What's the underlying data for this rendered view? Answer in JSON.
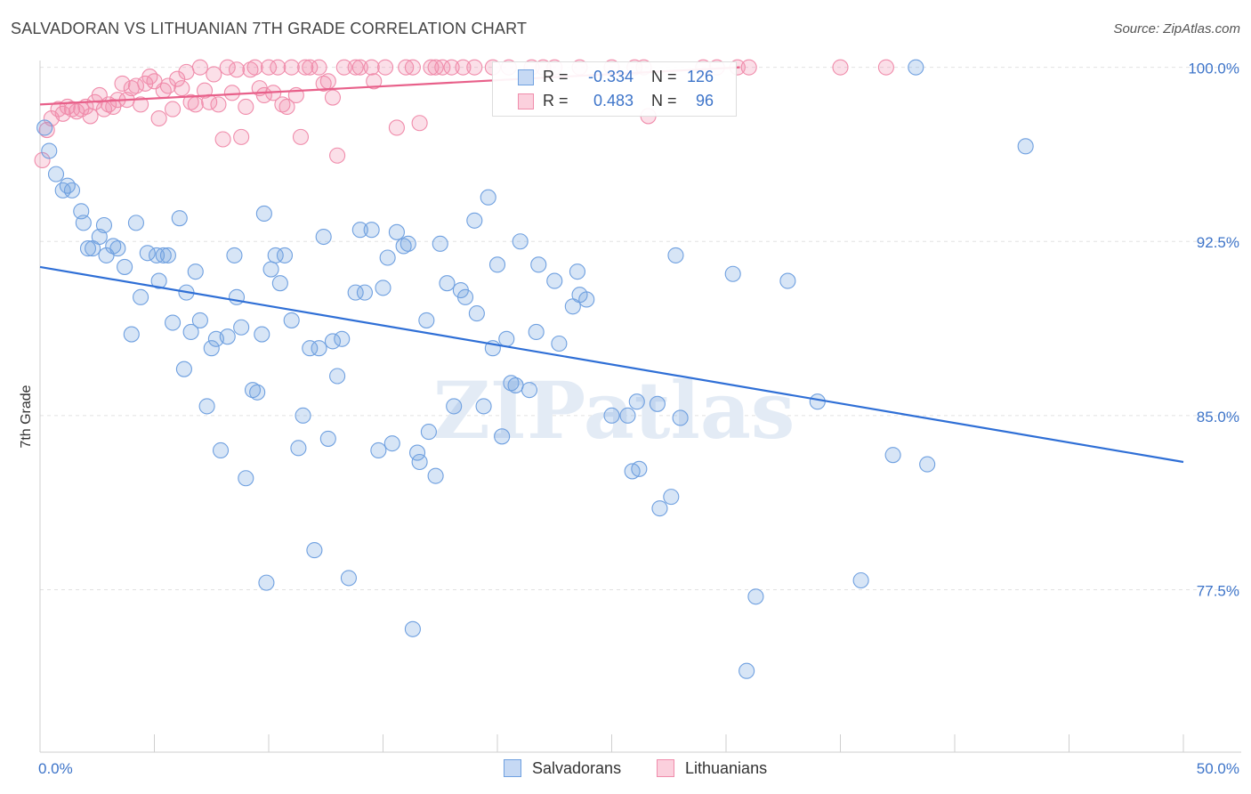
{
  "title": "SALVADORAN VS LITHUANIAN 7TH GRADE CORRELATION CHART",
  "source": "Source: ZipAtlas.com",
  "watermark": "ZIPatlas",
  "legend": {
    "rows": [
      {
        "r_label": "R =",
        "r_value": "-0.334",
        "n_label": "N =",
        "n_value": "126",
        "color": "#6fa0e0"
      },
      {
        "r_label": "R =",
        "r_value": "0.483",
        "n_label": "N =",
        "n_value": "96",
        "color": "#f08cab"
      }
    ]
  },
  "bottom_legend": [
    {
      "label": "Salvadorans",
      "color": "#6fa0e0"
    },
    {
      "label": "Lithuanians",
      "color": "#f08cab"
    }
  ],
  "chart_data": {
    "type": "scatter",
    "title": "SALVADORAN VS LITHUANIAN 7TH GRADE CORRELATION CHART",
    "xlabel": "",
    "ylabel": "7th Grade",
    "xlim": [
      0,
      50
    ],
    "ylim": [
      70.5,
      100.6
    ],
    "x_ticks": [
      0,
      50
    ],
    "x_tick_labels": [
      "0.0%",
      "50.0%"
    ],
    "y_ticks": [
      100,
      92.5,
      85,
      77.5
    ],
    "y_tick_labels": [
      "100.0%",
      "92.5%",
      "85.0%",
      "77.5%"
    ],
    "grid": "horizontal dashed",
    "legend_position": "top-center",
    "series": [
      {
        "name": "Salvadorans",
        "color": "#6fa0e0",
        "trend": {
          "x": [
            0,
            50
          ],
          "y": [
            91.4,
            83.0
          ]
        },
        "points": [
          [
            0.2,
            97.4
          ],
          [
            0.4,
            96.4
          ],
          [
            0.7,
            95.4
          ],
          [
            1.0,
            94.7
          ],
          [
            1.2,
            94.9
          ],
          [
            1.4,
            94.7
          ],
          [
            1.8,
            93.8
          ],
          [
            1.9,
            93.3
          ],
          [
            2.1,
            92.2
          ],
          [
            2.3,
            92.2
          ],
          [
            2.6,
            92.7
          ],
          [
            2.8,
            93.2
          ],
          [
            2.9,
            91.9
          ],
          [
            3.2,
            92.3
          ],
          [
            3.4,
            92.2
          ],
          [
            3.7,
            91.4
          ],
          [
            4.0,
            88.5
          ],
          [
            4.2,
            93.3
          ],
          [
            4.4,
            90.1
          ],
          [
            4.7,
            92.0
          ],
          [
            5.1,
            91.9
          ],
          [
            5.2,
            90.8
          ],
          [
            5.4,
            91.9
          ],
          [
            5.6,
            91.9
          ],
          [
            5.8,
            89.0
          ],
          [
            6.1,
            93.5
          ],
          [
            6.3,
            87.0
          ],
          [
            6.4,
            90.3
          ],
          [
            6.6,
            88.6
          ],
          [
            6.8,
            91.2
          ],
          [
            7.0,
            89.1
          ],
          [
            7.3,
            85.4
          ],
          [
            7.5,
            87.9
          ],
          [
            7.7,
            88.3
          ],
          [
            7.9,
            83.5
          ],
          [
            8.2,
            88.4
          ],
          [
            8.5,
            91.9
          ],
          [
            8.6,
            90.1
          ],
          [
            8.8,
            88.8
          ],
          [
            9.0,
            82.3
          ],
          [
            9.3,
            86.1
          ],
          [
            9.5,
            86.0
          ],
          [
            9.7,
            88.5
          ],
          [
            9.8,
            93.7
          ],
          [
            9.9,
            77.8
          ],
          [
            10.1,
            91.3
          ],
          [
            10.3,
            91.9
          ],
          [
            10.5,
            90.7
          ],
          [
            10.7,
            91.9
          ],
          [
            11.0,
            89.1
          ],
          [
            11.3,
            83.6
          ],
          [
            11.5,
            85.0
          ],
          [
            11.8,
            87.9
          ],
          [
            12.0,
            79.2
          ],
          [
            12.2,
            87.9
          ],
          [
            12.4,
            92.7
          ],
          [
            12.6,
            84.0
          ],
          [
            12.8,
            88.2
          ],
          [
            13.0,
            86.7
          ],
          [
            13.2,
            88.3
          ],
          [
            13.5,
            78.0
          ],
          [
            13.8,
            90.3
          ],
          [
            14.0,
            93.0
          ],
          [
            14.2,
            90.3
          ],
          [
            14.5,
            93.0
          ],
          [
            14.8,
            83.5
          ],
          [
            15.0,
            90.5
          ],
          [
            15.2,
            91.8
          ],
          [
            15.4,
            83.8
          ],
          [
            15.6,
            92.9
          ],
          [
            15.9,
            92.3
          ],
          [
            16.1,
            92.4
          ],
          [
            16.3,
            75.8
          ],
          [
            16.5,
            83.4
          ],
          [
            16.6,
            83.0
          ],
          [
            16.9,
            89.1
          ],
          [
            17.0,
            84.3
          ],
          [
            17.3,
            82.4
          ],
          [
            17.5,
            92.4
          ],
          [
            17.8,
            90.7
          ],
          [
            18.1,
            85.4
          ],
          [
            18.4,
            90.4
          ],
          [
            18.6,
            90.1
          ],
          [
            19.0,
            93.4
          ],
          [
            19.1,
            89.4
          ],
          [
            19.4,
            85.4
          ],
          [
            19.6,
            94.4
          ],
          [
            19.8,
            87.9
          ],
          [
            20.0,
            91.5
          ],
          [
            20.2,
            84.1
          ],
          [
            20.4,
            88.3
          ],
          [
            20.6,
            86.4
          ],
          [
            20.8,
            86.3
          ],
          [
            21.0,
            92.5
          ],
          [
            21.4,
            86.1
          ],
          [
            21.7,
            88.6
          ],
          [
            21.8,
            91.5
          ],
          [
            22.5,
            90.8
          ],
          [
            22.7,
            88.1
          ],
          [
            23.3,
            89.7
          ],
          [
            23.5,
            91.2
          ],
          [
            23.6,
            90.2
          ],
          [
            23.9,
            90.0
          ],
          [
            25.0,
            85.0
          ],
          [
            25.7,
            85.0
          ],
          [
            25.9,
            82.6
          ],
          [
            26.1,
            85.6
          ],
          [
            26.2,
            82.7
          ],
          [
            27.0,
            85.5
          ],
          [
            27.1,
            81.0
          ],
          [
            27.6,
            81.5
          ],
          [
            27.8,
            91.9
          ],
          [
            28.0,
            84.9
          ],
          [
            30.3,
            91.1
          ],
          [
            31.3,
            77.2
          ],
          [
            30.9,
            74.0
          ],
          [
            32.7,
            90.8
          ],
          [
            34.0,
            85.6
          ],
          [
            35.9,
            77.9
          ],
          [
            37.3,
            83.3
          ],
          [
            38.8,
            82.9
          ],
          [
            38.3,
            100.0
          ],
          [
            43.1,
            96.6
          ]
        ]
      },
      {
        "name": "Lithuanians",
        "color": "#f08cab",
        "trend": {
          "x": [
            0,
            30.6
          ],
          "y": [
            98.4,
            100.0
          ]
        },
        "points": [
          [
            0.1,
            96.0
          ],
          [
            0.3,
            97.3
          ],
          [
            0.5,
            97.8
          ],
          [
            0.8,
            98.2
          ],
          [
            1.0,
            98.0
          ],
          [
            1.2,
            98.3
          ],
          [
            1.4,
            98.2
          ],
          [
            1.6,
            98.1
          ],
          [
            1.8,
            98.2
          ],
          [
            2.0,
            98.3
          ],
          [
            2.2,
            97.9
          ],
          [
            2.4,
            98.5
          ],
          [
            2.6,
            98.8
          ],
          [
            2.8,
            98.2
          ],
          [
            3.0,
            98.4
          ],
          [
            3.2,
            98.3
          ],
          [
            3.4,
            98.6
          ],
          [
            3.6,
            99.3
          ],
          [
            3.8,
            98.6
          ],
          [
            4.0,
            99.1
          ],
          [
            4.2,
            99.2
          ],
          [
            4.4,
            98.4
          ],
          [
            4.6,
            99.3
          ],
          [
            4.8,
            99.6
          ],
          [
            5.0,
            99.4
          ],
          [
            5.2,
            97.8
          ],
          [
            5.4,
            99.0
          ],
          [
            5.6,
            99.2
          ],
          [
            5.8,
            98.2
          ],
          [
            6.0,
            99.5
          ],
          [
            6.2,
            99.1
          ],
          [
            6.4,
            99.8
          ],
          [
            6.6,
            98.5
          ],
          [
            6.8,
            98.4
          ],
          [
            7.0,
            100.0
          ],
          [
            7.2,
            99.0
          ],
          [
            7.4,
            98.5
          ],
          [
            7.6,
            99.7
          ],
          [
            7.8,
            98.4
          ],
          [
            8.0,
            96.9
          ],
          [
            8.2,
            100.0
          ],
          [
            8.4,
            98.9
          ],
          [
            8.6,
            99.9
          ],
          [
            8.8,
            97.0
          ],
          [
            9.0,
            98.3
          ],
          [
            9.2,
            99.9
          ],
          [
            9.4,
            100.0
          ],
          [
            9.6,
            99.1
          ],
          [
            9.8,
            98.8
          ],
          [
            10.0,
            100.0
          ],
          [
            10.2,
            98.9
          ],
          [
            10.4,
            100.0
          ],
          [
            10.6,
            98.4
          ],
          [
            10.8,
            98.3
          ],
          [
            11.0,
            100.0
          ],
          [
            11.2,
            98.8
          ],
          [
            11.4,
            97.0
          ],
          [
            11.6,
            100.0
          ],
          [
            11.8,
            100.0
          ],
          [
            12.2,
            100.0
          ],
          [
            12.4,
            99.3
          ],
          [
            12.6,
            99.4
          ],
          [
            12.8,
            98.7
          ],
          [
            13.0,
            96.2
          ],
          [
            13.3,
            100.0
          ],
          [
            13.8,
            100.0
          ],
          [
            14.0,
            100.0
          ],
          [
            14.5,
            100.0
          ],
          [
            14.6,
            99.4
          ],
          [
            15.1,
            100.0
          ],
          [
            15.6,
            97.4
          ],
          [
            16.0,
            100.0
          ],
          [
            16.3,
            100.0
          ],
          [
            16.6,
            97.6
          ],
          [
            17.1,
            100.0
          ],
          [
            17.3,
            100.0
          ],
          [
            17.6,
            100.0
          ],
          [
            18.0,
            100.0
          ],
          [
            18.5,
            100.0
          ],
          [
            19.0,
            100.0
          ],
          [
            19.8,
            100.0
          ],
          [
            20.5,
            100.0
          ],
          [
            21.5,
            100.0
          ],
          [
            22.0,
            100.0
          ],
          [
            22.5,
            100.0
          ],
          [
            23.6,
            100.0
          ],
          [
            25.0,
            100.0
          ],
          [
            26.0,
            100.0
          ],
          [
            26.4,
            100.0
          ],
          [
            26.6,
            97.9
          ],
          [
            29.0,
            100.0
          ],
          [
            29.6,
            100.0
          ],
          [
            30.5,
            100.0
          ],
          [
            31.0,
            100.0
          ],
          [
            35.0,
            100.0
          ],
          [
            37.0,
            100.0
          ]
        ]
      }
    ]
  }
}
